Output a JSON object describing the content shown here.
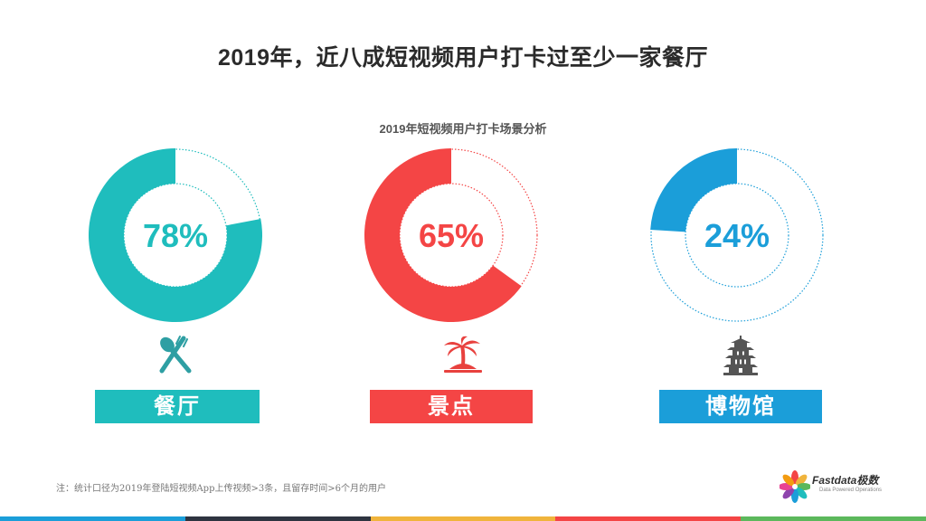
{
  "title": "2019年，近八成短视频用户打卡过至少一家餐厅",
  "chart_data": {
    "type": "pie",
    "title": "2019年短视频用户打卡场景分析",
    "categories": [
      "餐厅",
      "景点",
      "博物馆"
    ],
    "values": [
      78,
      65,
      24
    ],
    "value_labels": [
      "78%",
      "65%",
      "24%"
    ],
    "colors": [
      "#1fbdbd",
      "#f44545",
      "#1b9ed9"
    ],
    "unit": "%"
  },
  "icons": [
    "fork-spoon-icon",
    "palm-island-icon",
    "pagoda-icon"
  ],
  "footnote": "注：统计口径为2019年登陆短视频App上传视频>3条，且留存时间>6个月的用户",
  "logo": {
    "name": "Fastdata极数",
    "tagline": "Data Powered Operations"
  },
  "bottom_bar_colors": [
    "#1b9ed9",
    "#2e3440",
    "#f0b43c",
    "#f44545",
    "#5cb85c"
  ]
}
